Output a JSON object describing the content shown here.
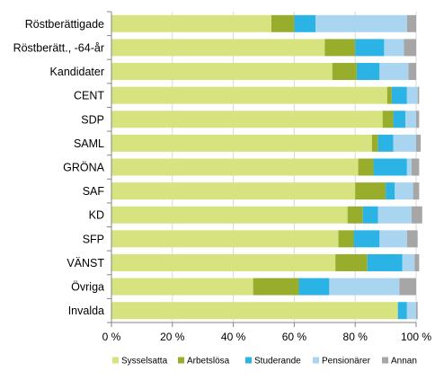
{
  "chart_data": {
    "type": "bar",
    "orientation": "horizontal",
    "stacked": true,
    "categories": [
      "Röstberättigade",
      "Röstberätt., -64-år",
      "Kandidater",
      "CENT",
      "SDP",
      "SAML",
      "GRÖNA",
      "SAF",
      "KD",
      "SFP",
      "VÄNST",
      "Övriga",
      "Invalda"
    ],
    "series": [
      {
        "name": "Sysselsatta",
        "color": "#d7e37e",
        "values": [
          52.5,
          70,
          72.5,
          90.5,
          89,
          85.5,
          81,
          80,
          77.5,
          74.5,
          73.5,
          46.5,
          94
        ]
      },
      {
        "name": "Arbetslösa",
        "color": "#98ad2c",
        "values": [
          7.5,
          10,
          8,
          1.5,
          3.5,
          2,
          5,
          10,
          5,
          5,
          10.5,
          15,
          0
        ]
      },
      {
        "name": "Studerande",
        "color": "#2bb3e6",
        "values": [
          7,
          9.5,
          7.5,
          5,
          4,
          5,
          11,
          3,
          5,
          8.5,
          11.5,
          10,
          3
        ]
      },
      {
        "name": "Pensionärer",
        "color": "#a9d5f1",
        "values": [
          30,
          6.5,
          9.5,
          3.5,
          3.5,
          7.5,
          1.5,
          6,
          11,
          9,
          4,
          23,
          3
        ]
      },
      {
        "name": "Annan",
        "color": "#a6a6a6",
        "values": [
          3,
          4,
          2.5,
          0.5,
          1,
          1.5,
          2.5,
          2,
          3.5,
          3.5,
          1.5,
          5.5,
          0.5
        ]
      }
    ],
    "xlim": [
      0,
      100
    ],
    "xticks": [
      0,
      20,
      40,
      60,
      80,
      100
    ],
    "xtick_labels": [
      "0 %",
      "20 %",
      "40 %",
      "60 %",
      "80 %",
      "100 %"
    ],
    "grid": true,
    "legend_position": "bottom"
  }
}
